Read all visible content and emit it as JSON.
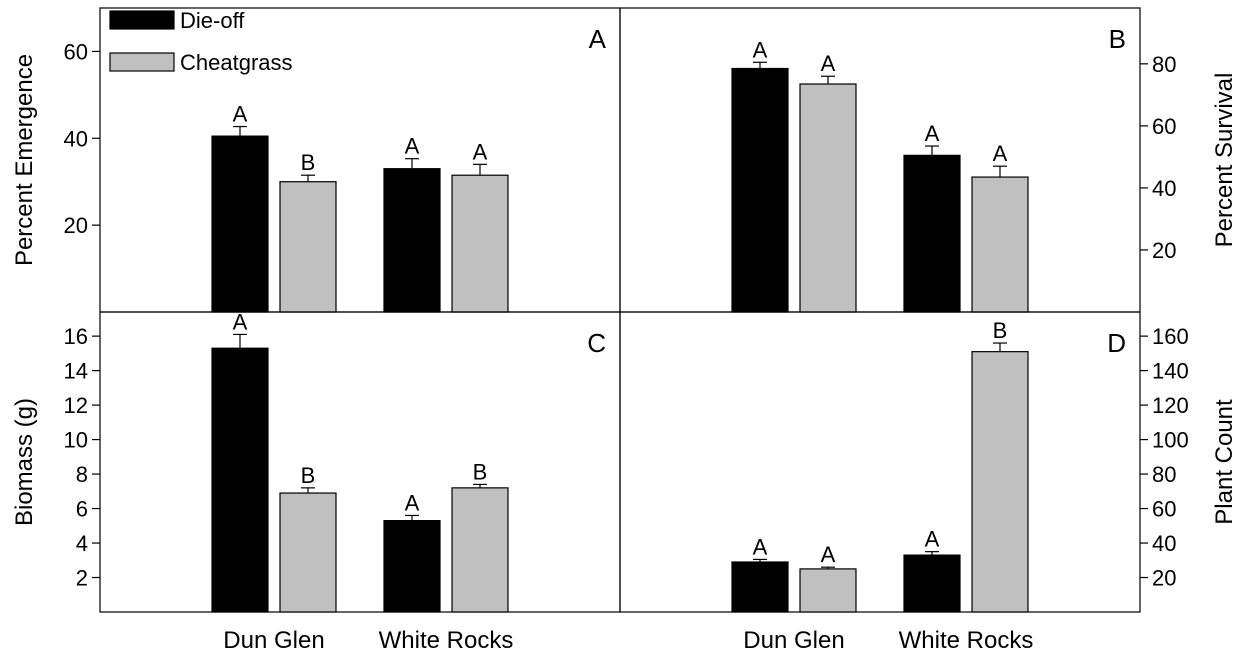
{
  "categories": [
    "Dun Glen",
    "White Rocks"
  ],
  "legend": {
    "position": "top-left of panel A",
    "entries": [
      {
        "name": "Die-off",
        "color": "#000000"
      },
      {
        "name": "Cheatgrass",
        "color": "#c0c0c0"
      }
    ]
  },
  "chart_data": [
    {
      "type": "bar",
      "panel": "A",
      "ylabel": "Percent Emergence",
      "yaxis_side": "left",
      "ylim": [
        0,
        70
      ],
      "yticks": [
        20,
        40,
        60
      ],
      "categories": [
        "Dun Glen",
        "White Rocks"
      ],
      "series": [
        {
          "name": "Die-off",
          "color": "#000000",
          "values": [
            40.5,
            33
          ],
          "errors": [
            2.2,
            2.3
          ],
          "letters": [
            "A",
            "A"
          ]
        },
        {
          "name": "Cheatgrass",
          "color": "#c0c0c0",
          "values": [
            30,
            31.5
          ],
          "errors": [
            1.5,
            2.5
          ],
          "letters": [
            "B",
            "A"
          ]
        }
      ]
    },
    {
      "type": "bar",
      "panel": "B",
      "ylabel": "Percent Survival",
      "yaxis_side": "right",
      "ylim": [
        0,
        98
      ],
      "yticks": [
        20,
        40,
        60,
        80
      ],
      "categories": [
        "Dun Glen",
        "White Rocks"
      ],
      "series": [
        {
          "name": "Die-off",
          "color": "#000000",
          "values": [
            78.5,
            50.5
          ],
          "errors": [
            2.0,
            3.0
          ],
          "letters": [
            "A",
            "A"
          ]
        },
        {
          "name": "Cheatgrass",
          "color": "#c0c0c0",
          "values": [
            73.5,
            43.5
          ],
          "errors": [
            2.5,
            3.5
          ],
          "letters": [
            "A",
            "A"
          ]
        }
      ]
    },
    {
      "type": "bar",
      "panel": "C",
      "ylabel": "Biomass (g)",
      "yaxis_side": "left",
      "ylim": [
        0,
        17.4
      ],
      "yticks": [
        2,
        4,
        6,
        8,
        10,
        12,
        14,
        16
      ],
      "categories": [
        "Dun Glen",
        "White Rocks"
      ],
      "series": [
        {
          "name": "Die-off",
          "color": "#000000",
          "values": [
            15.3,
            5.3
          ],
          "errors": [
            0.8,
            0.3
          ],
          "letters": [
            "A",
            "A"
          ]
        },
        {
          "name": "Cheatgrass",
          "color": "#c0c0c0",
          "values": [
            6.9,
            7.2
          ],
          "errors": [
            0.3,
            0.2
          ],
          "letters": [
            "B",
            "B"
          ]
        }
      ]
    },
    {
      "type": "bar",
      "panel": "D",
      "ylabel": "Plant Count",
      "yaxis_side": "right",
      "ylim": [
        0,
        174
      ],
      "yticks": [
        20,
        40,
        60,
        80,
        100,
        120,
        140,
        160
      ],
      "categories": [
        "Dun Glen",
        "White Rocks"
      ],
      "series": [
        {
          "name": "Die-off",
          "color": "#000000",
          "values": [
            29,
            33
          ],
          "errors": [
            1.5,
            2.0
          ],
          "letters": [
            "A",
            "A"
          ]
        },
        {
          "name": "Cheatgrass",
          "color": "#c0c0c0",
          "values": [
            25,
            151
          ],
          "errors": [
            1.0,
            5.0
          ],
          "letters": [
            "A",
            "B"
          ]
        }
      ]
    }
  ]
}
